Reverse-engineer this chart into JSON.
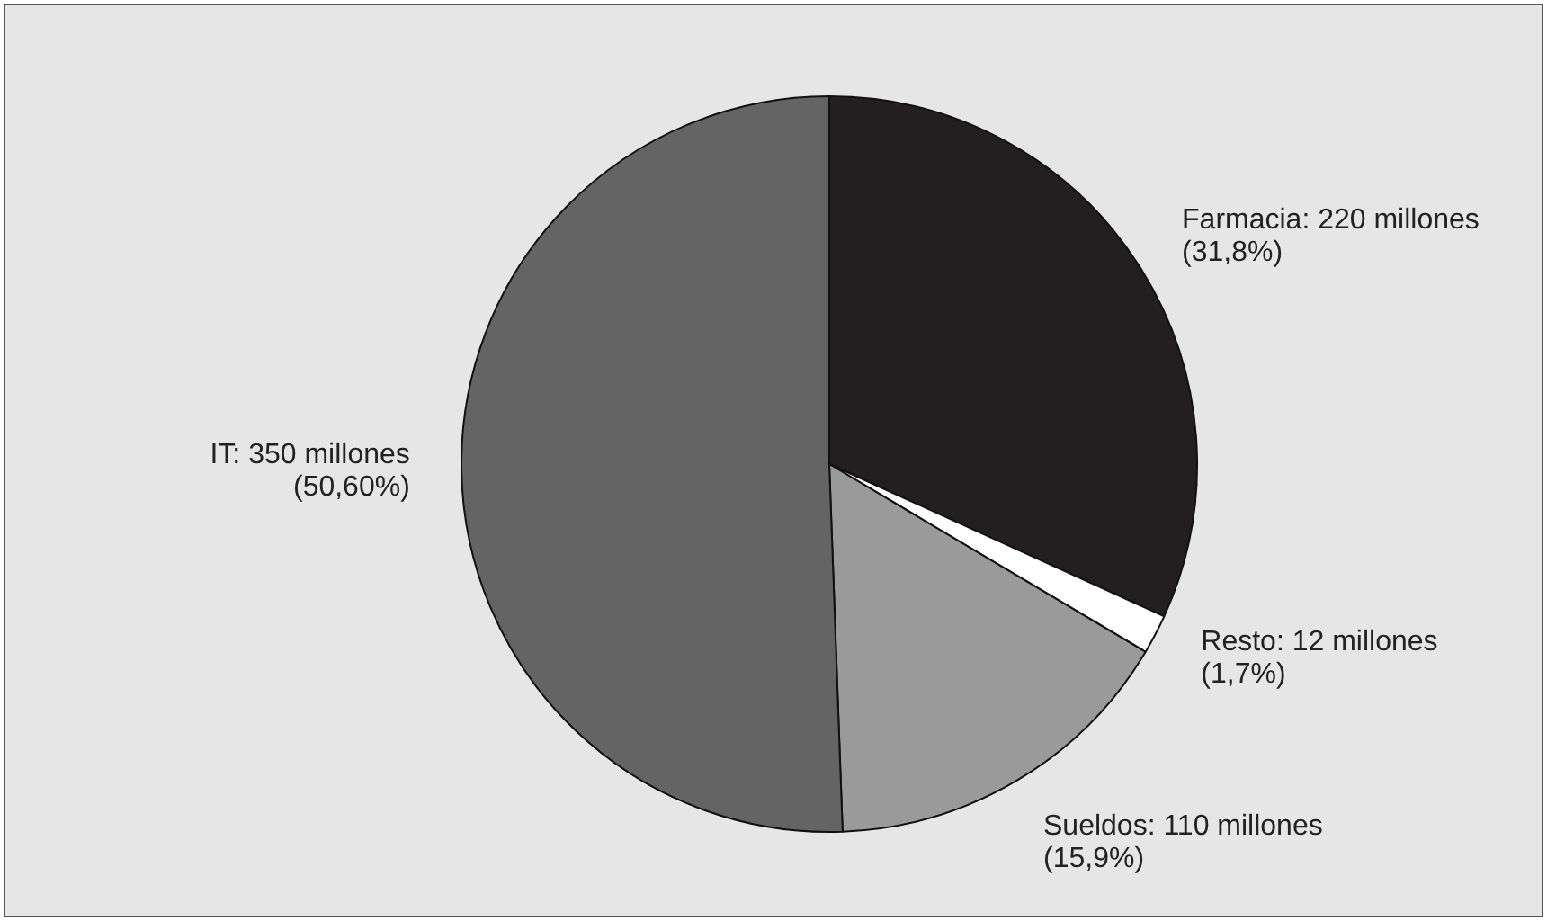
{
  "chart_data": {
    "type": "pie",
    "categories": [
      "Farmacia",
      "Resto",
      "Sueldos",
      "IT"
    ],
    "values": [
      220,
      12,
      110,
      350
    ],
    "colors": [
      "#231f20",
      "#ffffff",
      "#9a9a9a",
      "#646464"
    ],
    "value_labels": [
      "220 millones\n(31,8%)",
      "12 millones\n(1,7%)",
      "110 millones\n(15,9%)",
      "350 millones\n(50,60%)"
    ]
  }
}
